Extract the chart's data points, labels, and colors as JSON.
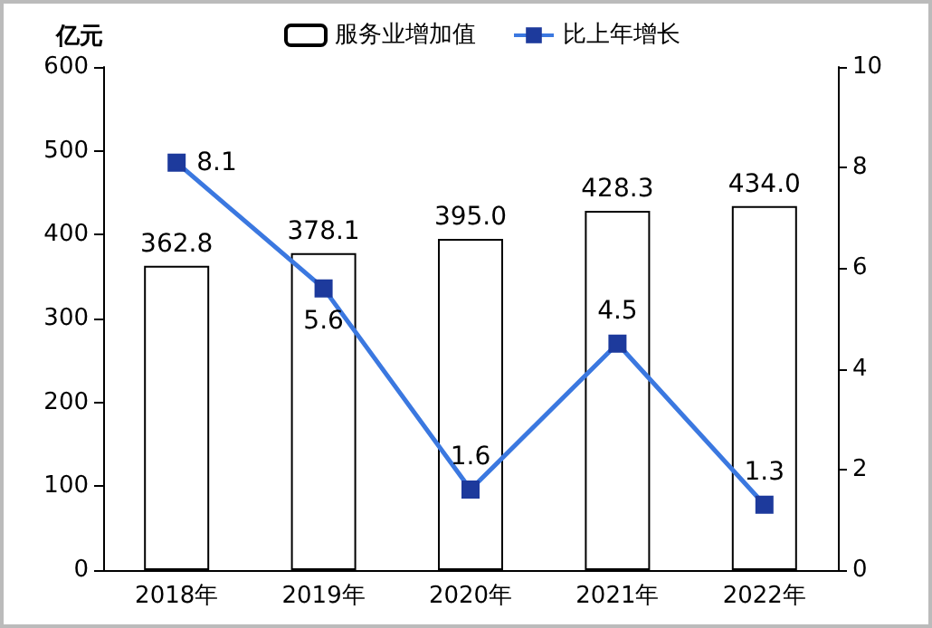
{
  "chart_data": {
    "type": "bar",
    "ylabel": "亿元",
    "categories": [
      "2018年",
      "2019年",
      "2020年",
      "2021年",
      "2022年"
    ],
    "series": [
      {
        "name": "服务业增加值",
        "color": "#ffffff",
        "values": [
          362.8,
          378.1,
          395.0,
          428.3,
          434.0
        ],
        "value_labels": [
          "362.8",
          "378.1",
          "395.0",
          "428.3",
          "434.0"
        ]
      },
      {
        "name": "比上年增长",
        "type": "line",
        "axis": "y2",
        "color": "#3b78e0",
        "values": [
          8.1,
          5.6,
          1.6,
          4.5,
          1.3
        ],
        "value_labels": [
          "8.1",
          "5.6",
          "1.6",
          "4.5",
          "1.3"
        ]
      }
    ],
    "ylim": [
      0,
      600
    ],
    "yticks": [
      0,
      100,
      200,
      300,
      400,
      500,
      600
    ],
    "y2lim": [
      0,
      10
    ],
    "y2ticks": [
      0,
      2,
      4,
      6,
      8,
      10
    ],
    "legend": "top",
    "grid": false,
    "marker": "square",
    "line_style": "solid"
  }
}
